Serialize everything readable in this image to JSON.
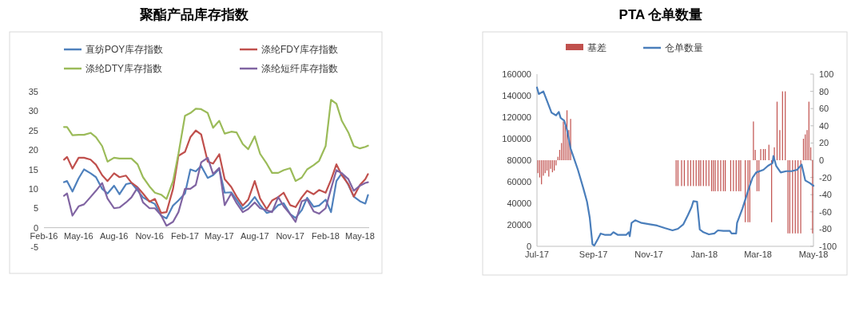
{
  "chart_data": [
    {
      "type": "line",
      "title": "聚酯产品库存指数",
      "legend": "top",
      "x": [
        "2016-03-24",
        "2016-04-01",
        "2016-04-15",
        "2016-05-01",
        "2016-05-15",
        "2016-06-01",
        "2016-06-15",
        "2016-07-01",
        "2016-07-15",
        "2016-08-01",
        "2016-08-15",
        "2016-09-01",
        "2016-09-15",
        "2016-10-01",
        "2016-10-15",
        "2016-11-01",
        "2016-11-15",
        "2016-12-01",
        "2016-12-15",
        "2017-01-01",
        "2017-01-15",
        "2017-02-01",
        "2017-02-15",
        "2017-03-01",
        "2017-03-15",
        "2017-04-01",
        "2017-04-15",
        "2017-05-01",
        "2017-05-15",
        "2017-06-01",
        "2017-06-15",
        "2017-07-01",
        "2017-07-15",
        "2017-08-01",
        "2017-08-15",
        "2017-09-01",
        "2017-09-15",
        "2017-10-01",
        "2017-10-15",
        "2017-11-01",
        "2017-11-15",
        "2017-12-01",
        "2017-12-15",
        "2018-01-01",
        "2018-01-15",
        "2018-02-01",
        "2018-02-15",
        "2018-03-01",
        "2018-03-15",
        "2018-04-01",
        "2018-04-15",
        "2018-05-01",
        "2018-05-15",
        "2018-05-22"
      ],
      "series": [
        {
          "name": "直纺POY库存指数",
          "color": "#4f81bd",
          "values": [
            11.7,
            12,
            9.3,
            12.7,
            15,
            14,
            13,
            10,
            8.8,
            10.8,
            8.6,
            11.2,
            11.5,
            9.6,
            7.8,
            6.8,
            6.1,
            3.1,
            2.4,
            5.7,
            7,
            8.8,
            15,
            14.5,
            15.9,
            12.8,
            13.5,
            15.1,
            9,
            9.1,
            7.2,
            4.8,
            5.8,
            7.9,
            5.8,
            3.8,
            4.2,
            5.8,
            6.3,
            3.5,
            2.5,
            4.5,
            7.7,
            5.4,
            5.7,
            7.2,
            4,
            12,
            14,
            11,
            8,
            6.8,
            6.2,
            8.4
          ]
        },
        {
          "name": "涤纶FDY库存指数",
          "color": "#c0504d",
          "values": [
            17.5,
            18.2,
            15.2,
            18,
            18,
            17.5,
            16.2,
            13.5,
            12,
            14,
            13,
            13.4,
            11.6,
            10.4,
            8.8,
            6.7,
            7.4,
            3.8,
            4,
            10,
            18.5,
            19.5,
            23.3,
            25,
            24,
            17,
            16.5,
            18.9,
            12.5,
            10.5,
            8,
            5.7,
            7.2,
            12,
            7.5,
            4.8,
            7,
            7.9,
            9,
            5.8,
            5.3,
            7.8,
            9.5,
            8.6,
            9.7,
            9,
            12.3,
            16.3,
            13.5,
            11.2,
            8,
            11,
            12.5,
            13.8
          ]
        },
        {
          "name": "涤纶DTY库存指数",
          "color": "#9bbb59",
          "values": [
            25.9,
            25.9,
            23.8,
            23.9,
            23.9,
            24.4,
            23.3,
            21,
            17,
            18,
            17.8,
            17.8,
            17.8,
            16.3,
            13,
            10.6,
            9,
            8.5,
            7.4,
            12,
            19,
            28.8,
            29.5,
            30.6,
            30.5,
            29.5,
            25.7,
            27.5,
            24.2,
            24.7,
            24.5,
            21.5,
            20.2,
            23.5,
            19,
            16.5,
            14.1,
            14.1,
            14.8,
            15.3,
            12,
            12.9,
            15,
            16.1,
            17.2,
            21,
            32.9,
            31.9,
            27.5,
            24.5,
            21,
            20.4,
            20.8,
            21.1
          ]
        },
        {
          "name": "涤纶短纤库存指数",
          "color": "#8064a2",
          "values": [
            8.2,
            8.8,
            3.1,
            5.5,
            6,
            7.9,
            9.5,
            11.5,
            7.5,
            5,
            5.2,
            6.5,
            7.8,
            10.3,
            6.5,
            5,
            5,
            3.2,
            0.5,
            1.5,
            4,
            10,
            10,
            11,
            16.8,
            18,
            13.8,
            15.4,
            5.8,
            8.8,
            6.3,
            4,
            4.8,
            6.5,
            5,
            4.5,
            4,
            7.9,
            5.5,
            3.5,
            1.5,
            6.8,
            7.3,
            4.2,
            3.6,
            5,
            10,
            14.8,
            14,
            12.5,
            9.5,
            10.8,
            11.5,
            11.7
          ]
        }
      ],
      "xlim": [
        "2016-02-01",
        "2018-05-25"
      ],
      "xticks": [
        {
          "value": "2016-02-01",
          "label": "Feb-16"
        },
        {
          "value": "2016-05-01",
          "label": "May-16"
        },
        {
          "value": "2016-08-01",
          "label": "Aug-16"
        },
        {
          "value": "2016-11-01",
          "label": "Nov-16"
        },
        {
          "value": "2017-02-01",
          "label": "Feb-17"
        },
        {
          "value": "2017-05-01",
          "label": "May-17"
        },
        {
          "value": "2017-08-01",
          "label": "Aug-17"
        },
        {
          "value": "2017-11-01",
          "label": "Nov-17"
        },
        {
          "value": "2018-02-01",
          "label": "Feb-18"
        },
        {
          "value": "2018-05-01",
          "label": "May-18"
        }
      ],
      "ylim": [
        -5,
        35
      ],
      "yticks": [
        -5,
        0,
        5,
        10,
        15,
        20,
        25,
        30,
        35
      ]
    },
    {
      "type": "line",
      "title": "PTA 仓单数量",
      "legend": "top",
      "series": [
        {
          "name": "基差",
          "type": "bar",
          "axis": "y2",
          "color": "#c0504d",
          "x": [
            "2017-07-02",
            "2017-07-04",
            "2017-07-06",
            "2017-07-08",
            "2017-07-10",
            "2017-07-12",
            "2017-07-14",
            "2017-07-16",
            "2017-07-18",
            "2017-07-20",
            "2017-07-22",
            "2017-07-24",
            "2017-07-26",
            "2017-07-28",
            "2017-07-30",
            "2017-08-01",
            "2017-08-03",
            "2017-08-05",
            "2017-08-07",
            "2017-12-01",
            "2017-12-03",
            "2017-12-07",
            "2017-12-10",
            "2017-12-14",
            "2017-12-17",
            "2017-12-20",
            "2017-12-23",
            "2017-12-26",
            "2017-12-28",
            "2017-12-31",
            "2018-01-03",
            "2018-01-06",
            "2018-01-09",
            "2018-01-11",
            "2018-01-13",
            "2018-01-16",
            "2018-01-19",
            "2018-01-22",
            "2018-01-24",
            "2018-01-30",
            "2018-02-02",
            "2018-02-05",
            "2018-02-08",
            "2018-02-10",
            "2018-02-15",
            "2018-02-18",
            "2018-02-20",
            "2018-02-24",
            "2018-02-26",
            "2018-02-28",
            "2018-03-02",
            "2018-03-04",
            "2018-03-07",
            "2018-03-09",
            "2018-03-13",
            "2018-03-16",
            "2018-03-19",
            "2018-03-22",
            "2018-03-25",
            "2018-03-28",
            "2018-03-31",
            "2018-04-03",
            "2018-04-05",
            "2018-04-08",
            "2018-04-11",
            "2018-04-14",
            "2018-04-17",
            "2018-04-20",
            "2018-04-22",
            "2018-04-24",
            "2018-04-26",
            "2018-04-28",
            "2018-04-30"
          ],
          "values": [
            -15,
            -20,
            -28,
            -18,
            -15,
            -12,
            -19,
            -10,
            -14,
            -12,
            -6,
            4,
            12,
            20,
            45,
            40,
            58,
            35,
            48,
            -30,
            -30,
            -30,
            -30,
            -30,
            -30,
            -30,
            -30,
            -30,
            -30,
            -30,
            -30,
            -30,
            -36,
            -36,
            -36,
            -36,
            -36,
            -36,
            -36,
            -36,
            -36,
            -36,
            -36,
            -36,
            -72,
            -72,
            -72,
            45,
            12,
            -36,
            -36,
            13,
            13,
            13,
            18,
            -72,
            15,
            68,
            35,
            80,
            80,
            -85,
            -85,
            -85,
            -85,
            -85,
            -85,
            25,
            30,
            35,
            68,
            15,
            -85
          ]
        },
        {
          "name": "仓单数量",
          "type": "line",
          "color": "#4a7ebb",
          "x": [
            "2017-07-01",
            "2017-07-03",
            "2017-07-08",
            "2017-07-12",
            "2017-07-17",
            "2017-07-22",
            "2017-07-25",
            "2017-07-27",
            "2017-07-31",
            "2017-08-03",
            "2017-08-07",
            "2017-08-11",
            "2017-08-15",
            "2017-08-21",
            "2017-08-25",
            "2017-08-28",
            "2017-08-31",
            "2017-09-02",
            "2017-09-06",
            "2017-09-09",
            "2017-09-14",
            "2017-09-20",
            "2017-09-23",
            "2017-09-28",
            "2017-10-07",
            "2017-10-10",
            "2017-10-11",
            "2017-10-13",
            "2017-10-17",
            "2017-10-24",
            "2017-11-02",
            "2017-11-10",
            "2017-11-19",
            "2017-11-27",
            "2017-12-03",
            "2017-12-09",
            "2017-12-14",
            "2017-12-18",
            "2017-12-20",
            "2017-12-24",
            "2017-12-27",
            "2017-12-31",
            "2018-01-06",
            "2018-01-12",
            "2018-01-16",
            "2018-01-22",
            "2018-01-29",
            "2018-01-31",
            "2018-02-05",
            "2018-02-06",
            "2018-02-12",
            "2018-02-18",
            "2018-02-23",
            "2018-02-27",
            "2018-03-07",
            "2018-03-12",
            "2018-03-17",
            "2018-03-18",
            "2018-03-21",
            "2018-03-26",
            "2018-04-01",
            "2018-04-07",
            "2018-04-13",
            "2018-04-18",
            "2018-04-22",
            "2018-04-27",
            "2018-05-01"
          ],
          "values": [
            147600,
            141500,
            144000,
            135300,
            124200,
            121700,
            124900,
            119300,
            116800,
            108100,
            90900,
            81000,
            71100,
            53800,
            41500,
            26700,
            2000,
            700,
            6900,
            11900,
            10600,
            10600,
            13100,
            10600,
            10600,
            13100,
            9400,
            21700,
            24200,
            21700,
            20500,
            19300,
            16800,
            14800,
            16300,
            20500,
            29100,
            36500,
            42000,
            41500,
            15600,
            13100,
            11100,
            11900,
            14800,
            14300,
            14300,
            11900,
            11900,
            21700,
            35300,
            51400,
            63700,
            68600,
            71100,
            74800,
            77300,
            83900,
            74800,
            68600,
            69800,
            69800,
            71100,
            76000,
            61200,
            58800,
            56300
          ]
        }
      ],
      "xlim": [
        "2017-07-01",
        "2018-05-01"
      ],
      "xticks": [
        {
          "value": "2017-07-01",
          "label": "Jul-17"
        },
        {
          "value": "2017-09-01",
          "label": "Sep-17"
        },
        {
          "value": "2017-11-01",
          "label": "Nov-17"
        },
        {
          "value": "2018-01-01",
          "label": "Jan-18"
        },
        {
          "value": "2018-03-01",
          "label": "Mar-18"
        },
        {
          "value": "2018-05-01",
          "label": "May-18"
        }
      ],
      "ylim": [
        0,
        160000
      ],
      "yticks": [
        0,
        20000,
        40000,
        60000,
        80000,
        100000,
        120000,
        140000,
        160000
      ],
      "y2lim": [
        -100,
        100
      ],
      "y2ticks": [
        -100,
        -80,
        -60,
        -40,
        -20,
        0,
        20,
        40,
        60,
        80,
        100
      ]
    }
  ]
}
